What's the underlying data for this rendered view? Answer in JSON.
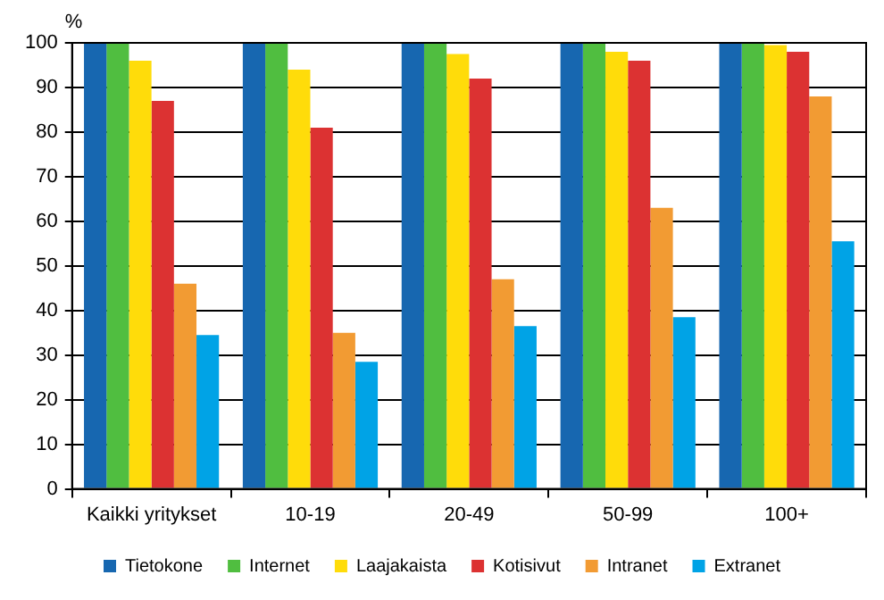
{
  "chart_data": {
    "type": "bar",
    "ylabel": "%",
    "categories": [
      "Kaikki yritykset",
      "10-19",
      "20-49",
      "50-99",
      "100+"
    ],
    "series": [
      {
        "name": "Tietokone",
        "color": "#1767b0",
        "values": [
          100,
          100,
          100,
          100,
          100
        ]
      },
      {
        "name": "Internet",
        "color": "#50be40",
        "values": [
          100,
          100,
          100,
          100,
          100
        ]
      },
      {
        "name": "Laajakaista",
        "color": "#ffdc0a",
        "values": [
          96,
          94,
          97.5,
          98,
          99.5
        ]
      },
      {
        "name": "Kotisivut",
        "color": "#dc3232",
        "values": [
          87,
          81,
          92,
          96,
          98
        ]
      },
      {
        "name": "Intranet",
        "color": "#f29b33",
        "values": [
          46,
          35,
          47,
          63,
          88
        ]
      },
      {
        "name": "Extranet",
        "color": "#00a3e6",
        "values": [
          34.5,
          28.5,
          36.5,
          38.5,
          55.5
        ]
      }
    ],
    "ylim": [
      0,
      100
    ],
    "yticks": [
      0,
      10,
      20,
      30,
      40,
      50,
      60,
      70,
      80,
      90,
      100
    ],
    "grid": "y",
    "legend": "bottom"
  }
}
